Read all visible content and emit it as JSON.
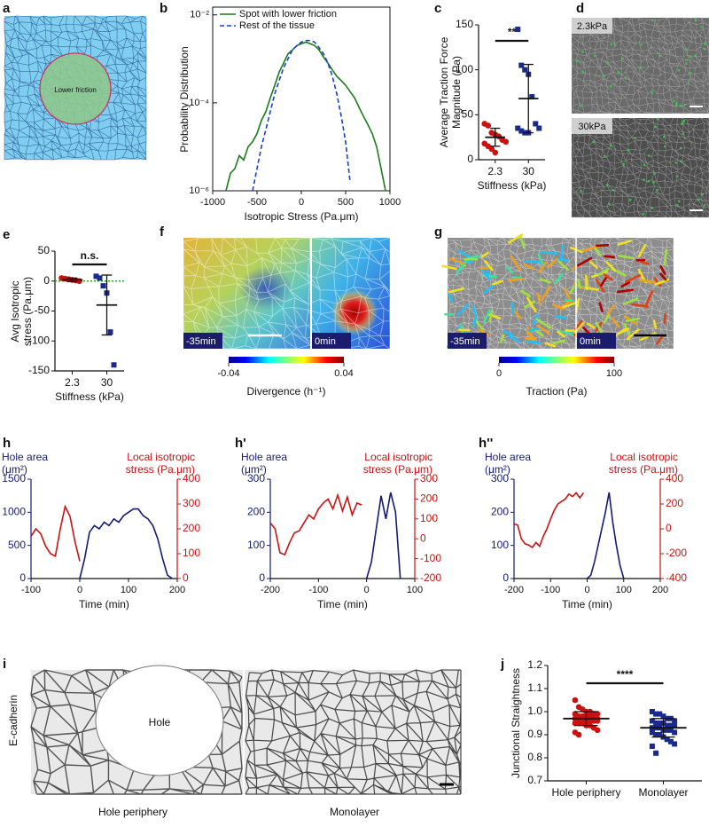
{
  "images": [
    {
      "label": "a",
      "text": "Lower friction"
    },
    {
      "label": "d",
      "tiles": [
        "2.3kPa",
        "30kPa"
      ]
    },
    {
      "label": "f",
      "tiles": [
        "-35min",
        "0min"
      ],
      "colorbar": {
        "ticks": [
          -0.04,
          0.04
        ],
        "label": "Divergence (h⁻¹)"
      }
    },
    {
      "label": "g",
      "tiles": [
        "-35min",
        "0min"
      ],
      "colorbar": {
        "ticks": [
          0,
          100
        ],
        "label": "Traction (Pa)"
      }
    },
    {
      "label": "i",
      "ylabel": "E-cadherin",
      "hole": "Hole",
      "tiles": [
        "Hole periphery",
        "Monolayer"
      ]
    }
  ],
  "chart_data": [
    {
      "label": "b",
      "type": "line",
      "ylabel": "Probability Distribution",
      "xlabel": "Isotropic Stress (Pa.μm)",
      "x": [
        -850,
        -800,
        -750,
        -700,
        -650,
        -600,
        -550,
        -500,
        -450,
        -400,
        -350,
        -300,
        -250,
        -200,
        -150,
        -100,
        -50,
        0,
        50,
        100,
        150,
        200,
        250,
        300,
        350,
        400,
        450,
        500,
        550,
        600,
        650,
        700,
        750,
        800,
        850,
        900,
        950
      ],
      "xlim": [
        -1000,
        1000
      ],
      "xticks": [
        -1000,
        -500,
        0,
        500,
        1000
      ],
      "ylim": [
        1e-06,
        0.015
      ],
      "log_y": true,
      "yticks": [
        {
          "value": 1e-06,
          "label": "10⁻⁶"
        },
        {
          "value": 0.0001,
          "label": "10⁻⁴"
        },
        {
          "value": 0.01,
          "label": "10⁻²"
        }
      ],
      "legend": "top-left",
      "series": [
        {
          "name": "Spot with lower friction",
          "color": "#1b7a1b",
          "line_style": "solid",
          "values": [
            1e-06,
            2.5e-06,
            3.2e-06,
            6.3e-06,
            5e-06,
            1e-05,
            1.3e-05,
            2e-05,
            4e-05,
            6.3e-05,
            0.00013,
            0.00025,
            0.0005,
            0.0008,
            0.0013,
            0.0016,
            0.002,
            0.0022,
            0.0024,
            0.0022,
            0.002,
            0.0016,
            0.0011,
            0.0008,
            0.00056,
            0.0004,
            0.00032,
            0.00025,
            0.00018,
            0.00013,
            8e-05,
            5e-05,
            3.2e-05,
            2e-05,
            1e-05,
            3.2e-06,
            1e-06
          ]
        },
        {
          "name": "Rest of the tissue",
          "color": "#1a3fcc",
          "line_style": "dashed",
          "values": [
            null,
            null,
            null,
            null,
            null,
            null,
            1e-06,
            3.2e-06,
            1e-05,
            2.5e-05,
            6.3e-05,
            0.00016,
            0.00032,
            0.00063,
            0.001,
            0.0016,
            0.002,
            0.0024,
            0.0026,
            0.0026,
            0.0024,
            0.0018,
            0.0013,
            0.0008,
            0.0004,
            0.00016,
            5e-05,
            1.3e-05,
            1.6e-06,
            null,
            null,
            null,
            null,
            null,
            null,
            null,
            null
          ]
        }
      ]
    },
    {
      "label": "c",
      "type": "dot",
      "ylabel": "Average Traction Force Magnitude (Pa)",
      "xlabel": "Stiffness (kPa)",
      "categories": [
        "2.3",
        "30"
      ],
      "ylim": [
        0,
        150
      ],
      "yticks": [
        0,
        50,
        100,
        150
      ],
      "significance": "**",
      "groups": [
        {
          "color": "#cc1111",
          "marker": "circle",
          "values": [
            40,
            38,
            30,
            28,
            26,
            22,
            20,
            18,
            15,
            12,
            8
          ],
          "mean": 25,
          "sd": 10
        },
        {
          "color": "#1a2a8c",
          "marker": "square",
          "values": [
            145,
            105,
            100,
            95,
            70,
            40,
            35,
            35,
            32,
            30,
            30
          ],
          "mean": 68,
          "sd": 38
        }
      ]
    },
    {
      "label": "e",
      "type": "dot",
      "ylabel": "Avg Isotropic stress (Pa.μm)",
      "xlabel": "Stiffness (kPa)",
      "categories": [
        "2.3",
        "30"
      ],
      "ylim": [
        -150,
        50
      ],
      "yticks": [
        -150,
        -100,
        -50,
        0,
        50
      ],
      "significance": "n.s.",
      "reference_line": {
        "value": 0,
        "color": "#22aa22"
      },
      "groups": [
        {
          "color": "#cc1111",
          "marker": "circle",
          "values": [
            5,
            4,
            3,
            2,
            1,
            0
          ],
          "mean": 2,
          "sd": 3
        },
        {
          "color": "#1a2a8c",
          "marker": "square",
          "values": [
            8,
            5,
            -8,
            -20,
            -85,
            -140
          ],
          "mean": -40,
          "sd": 50
        }
      ]
    },
    {
      "label": "h",
      "type": "dual_line",
      "xlabel": "Time (min)",
      "x": [
        -100,
        -90,
        -80,
        -70,
        -60,
        -50,
        -40,
        -30,
        -20,
        -10,
        0,
        10,
        20,
        30,
        40,
        50,
        60,
        70,
        80,
        90,
        100,
        110,
        120,
        130,
        140,
        150,
        160,
        170,
        180,
        190,
        200
      ],
      "xlim": [
        -100,
        200
      ],
      "xticks": [
        -100,
        0,
        100,
        200
      ],
      "ylim": [
        0,
        1500
      ],
      "yticks": [
        0,
        500,
        1000,
        1500
      ],
      "y2lim": [
        0,
        400
      ],
      "y2ticks": [
        0,
        100,
        200,
        300,
        400
      ],
      "series": [
        {
          "name": "Hole area (μm²)",
          "color": "#141a78",
          "axis": "y",
          "values": [
            null,
            null,
            null,
            null,
            null,
            null,
            null,
            null,
            null,
            null,
            0,
            300,
            700,
            800,
            750,
            850,
            800,
            900,
            850,
            950,
            1000,
            1050,
            1050,
            950,
            900,
            800,
            600,
            300,
            50,
            0,
            null
          ]
        },
        {
          "name": "Local isotropic stress (Pa.μm)",
          "color": "#cc1111",
          "axis": "y2",
          "values": [
            170,
            200,
            180,
            130,
            100,
            90,
            200,
            290,
            250,
            150,
            70,
            null,
            null,
            null,
            null,
            null,
            null,
            null,
            null,
            null,
            null,
            null,
            null,
            null,
            null,
            null,
            null,
            null,
            null,
            null,
            null
          ]
        }
      ]
    },
    {
      "label": "h'",
      "type": "dual_line",
      "xlabel": "Time (min)",
      "x": [
        -200,
        -190,
        -180,
        -170,
        -160,
        -150,
        -140,
        -130,
        -120,
        -110,
        -100,
        -90,
        -80,
        -70,
        -60,
        -50,
        -40,
        -30,
        -20,
        -10,
        0,
        10,
        20,
        30,
        40,
        50,
        60,
        70,
        80,
        90,
        100
      ],
      "xlim": [
        -200,
        100
      ],
      "xticks": [
        -200,
        -100,
        0,
        100
      ],
      "ylim": [
        0,
        300
      ],
      "yticks": [
        0,
        100,
        200,
        300
      ],
      "y2lim": [
        -200,
        300
      ],
      "y2ticks": [
        -200,
        -100,
        0,
        100,
        200,
        300
      ],
      "series": [
        {
          "name": "Hole area (μm²)",
          "color": "#141a78",
          "axis": "y",
          "values": [
            null,
            null,
            null,
            null,
            null,
            null,
            null,
            null,
            null,
            null,
            null,
            null,
            null,
            null,
            null,
            null,
            null,
            null,
            null,
            null,
            0,
            50,
            150,
            250,
            180,
            260,
            200,
            0,
            null,
            null,
            null
          ]
        },
        {
          "name": "Local isotropic stress (Pa.μm)",
          "color": "#cc1111",
          "axis": "y2",
          "values": [
            80,
            50,
            -70,
            -80,
            -20,
            30,
            40,
            80,
            120,
            100,
            150,
            180,
            200,
            150,
            220,
            140,
            210,
            120,
            180,
            170,
            null,
            null,
            null,
            null,
            null,
            null,
            null,
            null,
            null,
            null,
            null
          ]
        }
      ]
    },
    {
      "label": "h''",
      "type": "dual_line",
      "xlabel": "Time (min)",
      "x": [
        -200,
        -190,
        -180,
        -170,
        -160,
        -150,
        -140,
        -130,
        -120,
        -110,
        -100,
        -90,
        -80,
        -70,
        -60,
        -50,
        -40,
        -30,
        -20,
        -10,
        0,
        10,
        20,
        30,
        40,
        50,
        60,
        70,
        80,
        90,
        100,
        110,
        120,
        130,
        140,
        150,
        160,
        170,
        180,
        190,
        200
      ],
      "xlim": [
        -200,
        200
      ],
      "xticks": [
        -200,
        -100,
        0,
        100,
        200
      ],
      "ylim": [
        0,
        300
      ],
      "yticks": [
        0,
        100,
        200,
        300
      ],
      "y2lim": [
        -400,
        400
      ],
      "y2ticks": [
        -400,
        -200,
        0,
        200,
        400
      ],
      "series": [
        {
          "name": "Hole area (μm²)",
          "color": "#141a78",
          "axis": "y",
          "values": [
            null,
            null,
            null,
            null,
            null,
            null,
            null,
            null,
            null,
            null,
            null,
            null,
            null,
            null,
            null,
            null,
            null,
            null,
            null,
            null,
            0,
            10,
            50,
            100,
            150,
            200,
            260,
            170,
            100,
            40,
            0,
            null,
            null,
            null,
            null,
            null,
            null,
            null,
            null,
            null,
            null
          ]
        },
        {
          "name": "Local isotropic stress (Pa.μm)",
          "color": "#cc1111",
          "axis": "y2",
          "values": [
            40,
            30,
            -80,
            -120,
            -130,
            -150,
            -110,
            -140,
            -60,
            0,
            80,
            150,
            200,
            220,
            240,
            280,
            260,
            290,
            250,
            290,
            null,
            null,
            null,
            null,
            null,
            null,
            null,
            null,
            null,
            null,
            null,
            null,
            null,
            null,
            null,
            null,
            null,
            null,
            null,
            null,
            null
          ]
        }
      ]
    },
    {
      "label": "j",
      "type": "dot",
      "ylabel": "Junctional Straightness",
      "categories": [
        "Hole periphery",
        "Monolayer"
      ],
      "ylim": [
        0.7,
        1.2
      ],
      "yticks": [
        0.7,
        0.8,
        0.9,
        {
          "value": 1,
          "label": "1.0"
        },
        1.1,
        1.2
      ],
      "significance": "****",
      "groups": [
        {
          "color": "#cc1111",
          "marker": "circle",
          "mean": 0.97,
          "sd": 0.03,
          "values": [
            1.05,
            1.02,
            1.01,
            1.0,
            1.0,
            0.99,
            0.99,
            0.99,
            0.98,
            0.98,
            0.98,
            0.98,
            0.97,
            0.97,
            0.97,
            0.97,
            0.97,
            0.96,
            0.96,
            0.96,
            0.96,
            0.95,
            0.95,
            0.95,
            0.94,
            0.94,
            0.93,
            0.92,
            0.91,
            0.9
          ]
        },
        {
          "color": "#1a2a8c",
          "marker": "square",
          "mean": 0.93,
          "sd": 0.04,
          "values": [
            1.0,
            0.99,
            0.99,
            0.98,
            0.97,
            0.97,
            0.96,
            0.96,
            0.95,
            0.95,
            0.95,
            0.94,
            0.94,
            0.94,
            0.93,
            0.93,
            0.93,
            0.92,
            0.92,
            0.92,
            0.91,
            0.91,
            0.9,
            0.9,
            0.89,
            0.88,
            0.87,
            0.86,
            0.85,
            0.82
          ]
        }
      ]
    }
  ]
}
